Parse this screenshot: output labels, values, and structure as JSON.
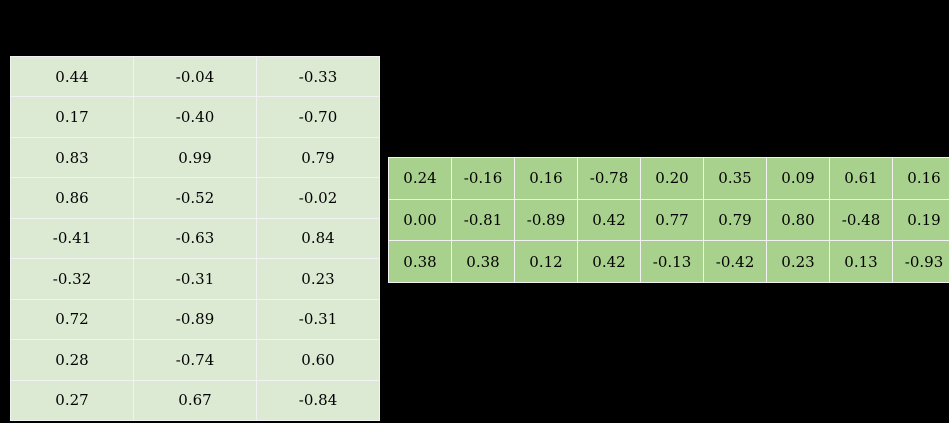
{
  "theme": {
    "page-bg": "#000000",
    "left-cell-bg": "#dcead3",
    "right-cell-bg": "#a9d18e",
    "grid-line": "#f2f2f2",
    "text-color": "#000000"
  },
  "left_table": {
    "rows": [
      [
        "0.44",
        "-0.04",
        "-0.33"
      ],
      [
        "0.17",
        "-0.40",
        "-0.70"
      ],
      [
        "0.83",
        "0.99",
        "0.79"
      ],
      [
        "0.86",
        "-0.52",
        "-0.02"
      ],
      [
        "-0.41",
        "-0.63",
        "0.84"
      ],
      [
        "-0.32",
        "-0.31",
        "0.23"
      ],
      [
        "0.72",
        "-0.89",
        "-0.31"
      ],
      [
        "0.28",
        "-0.74",
        "0.60"
      ],
      [
        "0.27",
        "0.67",
        "-0.84"
      ]
    ]
  },
  "right_table": {
    "rows": [
      [
        "0.24",
        "-0.16",
        "0.16",
        "-0.78",
        "0.20",
        "0.35",
        "0.09",
        "0.61",
        "0.16"
      ],
      [
        "0.00",
        "-0.81",
        "-0.89",
        "0.42",
        "0.77",
        "0.79",
        "0.80",
        "-0.48",
        "0.19"
      ],
      [
        "0.38",
        "0.38",
        "0.12",
        "0.42",
        "-0.13",
        "-0.42",
        "0.23",
        "0.13",
        "-0.93"
      ]
    ]
  },
  "chart_data": [
    {
      "type": "table",
      "title": "",
      "rows_count": 9,
      "cols_count": 3,
      "values": [
        [
          0.44,
          -0.04,
          -0.33
        ],
        [
          0.17,
          -0.4,
          -0.7
        ],
        [
          0.83,
          0.99,
          0.79
        ],
        [
          0.86,
          -0.52,
          -0.02
        ],
        [
          -0.41,
          -0.63,
          0.84
        ],
        [
          -0.32,
          -0.31,
          0.23
        ],
        [
          0.72,
          -0.89,
          -0.31
        ],
        [
          0.28,
          -0.74,
          0.6
        ],
        [
          0.27,
          0.67,
          -0.84
        ]
      ]
    },
    {
      "type": "table",
      "title": "",
      "rows_count": 3,
      "cols_count": 9,
      "values": [
        [
          0.24,
          -0.16,
          0.16,
          -0.78,
          0.2,
          0.35,
          0.09,
          0.61,
          0.16
        ],
        [
          0.0,
          -0.81,
          -0.89,
          0.42,
          0.77,
          0.79,
          0.8,
          -0.48,
          0.19
        ],
        [
          0.38,
          0.38,
          0.12,
          0.42,
          -0.13,
          -0.42,
          0.23,
          0.13,
          -0.93
        ]
      ]
    }
  ]
}
